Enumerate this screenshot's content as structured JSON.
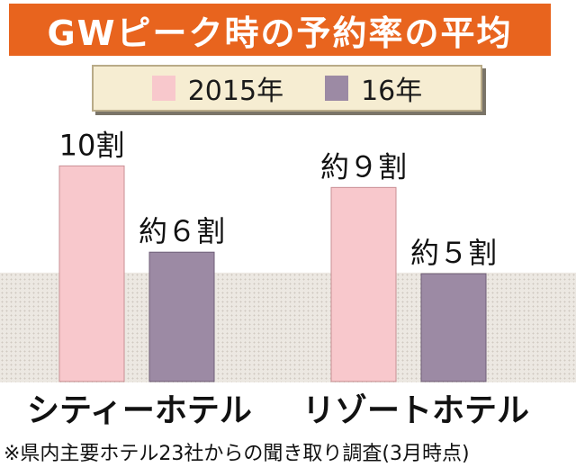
{
  "chart_data": {
    "type": "bar",
    "title": "GWピーク時の予約率の平均",
    "categories": [
      "シティーホテル",
      "リゾートホテル"
    ],
    "series": [
      {
        "name": "2015年",
        "values": [
          10,
          9
        ],
        "labels": [
          "10割",
          "約９割"
        ]
      },
      {
        "name": "16年",
        "values": [
          6,
          5
        ],
        "labels": [
          "約６割",
          "約５割"
        ]
      }
    ],
    "ylim": [
      0,
      10.6
    ],
    "legend": "top",
    "grid": false
  },
  "colors": {
    "title_bg": "#e8641e",
    "series_2015": "#f8c8cc",
    "series_16": "#9c8aa4",
    "legend_bg": "#f6edd2"
  },
  "footnote": "※県内主要ホテル23社からの聞き取り調査(3月時点)"
}
